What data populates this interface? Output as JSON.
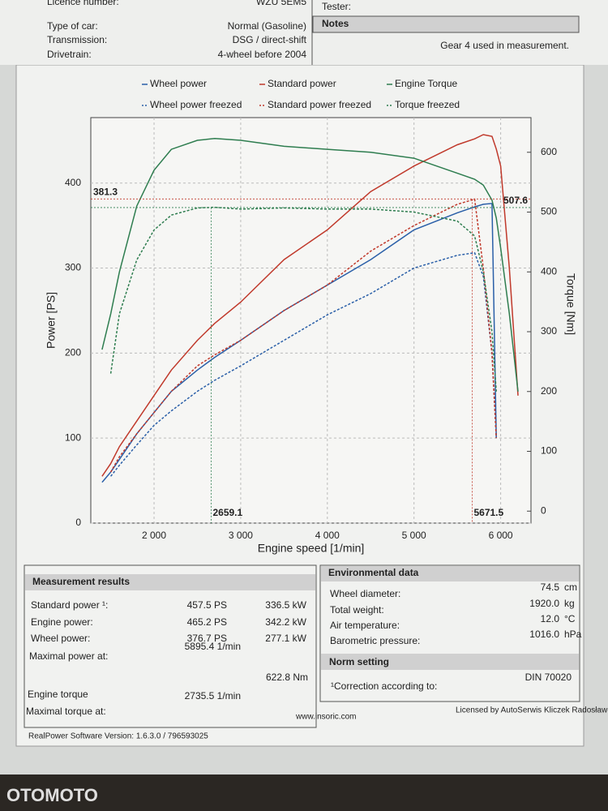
{
  "header": {
    "rows": [
      [
        "Licence number:",
        "WZU 5EM5"
      ],
      [
        "Type of car:",
        "Normal (Gasoline)"
      ],
      [
        "Transmission:",
        "DSG / direct-shift"
      ],
      [
        "Drivetrain:",
        "4-wheel before 2004"
      ]
    ],
    "tester": "Tester:",
    "notes_title": "Notes",
    "notes": "Gear 4 used in measurement."
  },
  "chart_data": {
    "type": "line",
    "x_label": "Engine speed [1/min]",
    "y_label": "Power [PS]",
    "y2_label": "Torque [Nm]",
    "x": [
      1400,
      1500,
      1600,
      1800,
      2000,
      2200,
      2500,
      2700,
      3000,
      3500,
      4000,
      4500,
      5000,
      5500,
      5700,
      5800,
      5900,
      5950,
      6000,
      6100,
      6200
    ],
    "xlim": [
      1270,
      6350
    ],
    "xticks": [
      {
        "value": 2000,
        "label": "2 000"
      },
      {
        "value": 3000,
        "label": "3 000"
      },
      {
        "value": 4000,
        "label": "4 000"
      },
      {
        "value": 5000,
        "label": "5 000"
      },
      {
        "value": 6000,
        "label": "6 000"
      }
    ],
    "ylim": [
      0,
      477
    ],
    "yticks": [
      0,
      100,
      200,
      300,
      400
    ],
    "y2lim": [
      -20,
      658
    ],
    "y2ticks": [
      0,
      100,
      200,
      300,
      400,
      500,
      600
    ],
    "grid": true,
    "series": [
      {
        "name": "Wheel power",
        "color": "#2a5fa8",
        "dash": false,
        "values": [
          48,
          60,
          75,
          105,
          130,
          155,
          180,
          195,
          215,
          250,
          280,
          310,
          345,
          365,
          372,
          375,
          376,
          100,
          null,
          null,
          null
        ]
      },
      {
        "name": "Standard power",
        "color": "#c0392b",
        "dash": false,
        "values": [
          55,
          70,
          90,
          120,
          150,
          180,
          215,
          235,
          260,
          310,
          345,
          390,
          420,
          445,
          452,
          457,
          455,
          440,
          420,
          300,
          150
        ]
      },
      {
        "name": "Engine Torque",
        "color": "#2e7d4f",
        "dash": false,
        "axis": "y2",
        "values": [
          270,
          330,
          400,
          510,
          570,
          605,
          620,
          623,
          620,
          610,
          605,
          600,
          590,
          565,
          555,
          545,
          520,
          490,
          440,
          330,
          200
        ]
      },
      {
        "name": "Wheel power freezed",
        "color": "#2a5fa8",
        "dash": true,
        "values": [
          null,
          55,
          68,
          92,
          115,
          132,
          155,
          168,
          185,
          215,
          245,
          270,
          300,
          315,
          318,
          290,
          200,
          100,
          null,
          null,
          null
        ]
      },
      {
        "name": "Standard power freezed",
        "color": "#c0392b",
        "dash": true,
        "values": [
          null,
          60,
          78,
          105,
          130,
          155,
          185,
          198,
          215,
          250,
          280,
          320,
          350,
          375,
          381,
          300,
          200,
          100,
          null,
          null,
          null
        ]
      },
      {
        "name": "Torque freezed",
        "color": "#2e7d4f",
        "dash": true,
        "axis": "y2",
        "values": [
          null,
          230,
          330,
          420,
          470,
          495,
          507,
          508,
          505,
          507,
          505,
          505,
          500,
          485,
          460,
          400,
          300,
          200,
          null,
          null,
          null
        ]
      }
    ],
    "annotations": [
      {
        "x": 5671.5,
        "y": 381.3,
        "color": "#c0392b"
      },
      {
        "x": 2659.1,
        "y": 507.6,
        "axis": "y2",
        "color": "#2e7d4f"
      }
    ]
  },
  "results": {
    "title": "Measurement results",
    "rows": [
      {
        "label": "Standard power ¹:",
        "ps": "457.5 PS",
        "kw": "336.5 kW",
        "color": "#c0392b"
      },
      {
        "label": "Engine power:",
        "ps": "465.2 PS",
        "kw": "342.2 kW",
        "color": "#c0392b"
      },
      {
        "label": "Wheel power:",
        "ps": "376.7 PS",
        "kw": "277.1 kW",
        "color": "#2a5fa8"
      }
    ],
    "max_power_label": "Maximal power at:",
    "max_power": "5895.4 1/min",
    "torque_label": "Engine torque",
    "torque": "622.8 Nm",
    "max_torque_label": "Maximal torque at:",
    "max_torque": "2735.5 1/min"
  },
  "environment": {
    "title": "Environmental data",
    "rows": [
      [
        "Wheel diameter:",
        "74.5",
        "cm"
      ],
      [
        "Total weight:",
        "1920.0",
        "kg"
      ],
      [
        "Air temperature:",
        "12.0",
        "°C"
      ],
      [
        "Barometric pressure:",
        "1016.0",
        "hPa"
      ]
    ],
    "norm_title": "Norm setting",
    "norm_label": "¹Correction according to:",
    "norm": "DIN 70020"
  },
  "footer": {
    "software": "RealPower Software Version: 1.6.3.0 / 796593025",
    "web": "www.insoric.com",
    "license": "Licensed by AutoSerwis Kliczek Radosław Kliczek"
  },
  "watermark": "OTOMOTO"
}
